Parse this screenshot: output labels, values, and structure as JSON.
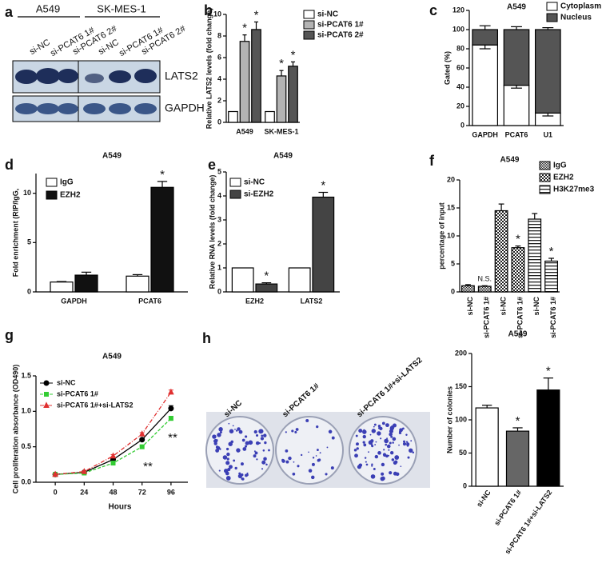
{
  "blot": {
    "panel": "a",
    "groups": [
      "A549",
      "SK-MES-1"
    ],
    "lanes": [
      "si-NC",
      "si-PCAT6 1#",
      "si-PCAT6 2#",
      "si-NC",
      "si-PCAT6 1#",
      "si-PCAT6 2#"
    ],
    "bands": [
      "LATS2",
      "GAPDH"
    ]
  },
  "colony_image": {
    "panel": "h",
    "labels": [
      "si-NC",
      "si-PCAT6 1#",
      "si-PCAT6 1#+si-LATS2"
    ]
  },
  "chart_data": [
    {
      "panel": "b",
      "type": "bar",
      "ylabel": "Relative LATS2 levels (fold change)",
      "categories": [
        "A549",
        "SK-MES-1"
      ],
      "series": [
        {
          "name": "si-NC",
          "color": "#ffffff",
          "values": [
            1,
            1
          ]
        },
        {
          "name": "si-PCAT6 1#",
          "color": "#b3b3b3",
          "values": [
            7.5,
            4.3
          ],
          "errors": [
            0.6,
            0.5
          ]
        },
        {
          "name": "si-PCAT6 2#",
          "color": "#555555",
          "values": [
            8.6,
            5.2
          ],
          "errors": [
            0.7,
            0.4
          ]
        }
      ],
      "ylim": [
        0,
        10
      ],
      "yticks": [
        0,
        2,
        4,
        6,
        8,
        10
      ],
      "annotations": [
        "*",
        "*",
        "*",
        "*"
      ],
      "annotation_color": "#1f3a80"
    },
    {
      "panel": "c",
      "type": "stacked_bar",
      "title": "A549",
      "ylabel": "Gated (%)",
      "categories": [
        "GAPDH",
        "PCAT6",
        "U1"
      ],
      "series": [
        {
          "name": "Cytoplasm",
          "color": "#ffffff",
          "values": [
            84,
            42,
            13
          ],
          "errors": [
            4,
            3,
            3
          ]
        },
        {
          "name": "Nucleus",
          "color": "#555555",
          "values": [
            16,
            58,
            87
          ],
          "errors": [
            4,
            3,
            2
          ]
        }
      ],
      "ylim": [
        0,
        120
      ],
      "yticks": [
        0,
        20,
        40,
        60,
        80,
        100,
        120
      ]
    },
    {
      "panel": "d",
      "type": "bar",
      "title": "A549",
      "ylabel": "Fold enrichment (RIP/IgG,",
      "categories": [
        "GAPDH",
        "PCAT6"
      ],
      "series": [
        {
          "name": "IgG",
          "color": "#ffffff",
          "values": [
            1,
            1.6
          ],
          "errors": [
            0.05,
            0.15
          ]
        },
        {
          "name": "EZH2",
          "color": "#111111",
          "values": [
            1.7,
            10.6
          ],
          "errors": [
            0.3,
            0.6
          ]
        }
      ],
      "ylim": [
        0,
        12
      ],
      "yticks": [
        0,
        5,
        10
      ],
      "annotations": [
        "*"
      ],
      "annotation_color": "#1f3a80"
    },
    {
      "panel": "e",
      "type": "bar",
      "title": "A549",
      "ylabel": "Relative RNA levels (fold change)",
      "categories": [
        "EZH2",
        "LATS2"
      ],
      "series": [
        {
          "name": "si-NC",
          "color": "#ffffff",
          "values": [
            1,
            1
          ]
        },
        {
          "name": "si-EZH2",
          "color": "#444444",
          "values": [
            0.33,
            3.95
          ],
          "errors": [
            0.05,
            0.2
          ]
        }
      ],
      "ylim": [
        0,
        5
      ],
      "yticks": [
        0,
        1,
        2,
        3,
        4,
        5
      ],
      "annotations": [
        "*",
        "*"
      ],
      "annotation_color": "#1f3a80"
    },
    {
      "panel": "f",
      "type": "bar",
      "title": "A549",
      "ylabel": "percentage of input",
      "categories": [
        "si-NC",
        "si-PCAT6 1#",
        "si-NC",
        "si-PCAT6 1#",
        "si-NC",
        "si-PCAT6 1#"
      ],
      "series": [
        {
          "name": "IgG",
          "color": "#222222",
          "pattern": "dense-checker",
          "values": [
            1.1,
            1.0,
            null,
            null,
            null,
            null
          ],
          "errors": [
            0.2,
            0.1,
            null,
            null,
            null,
            null
          ]
        },
        {
          "name": "EZH2",
          "color": "#222222",
          "pattern": "checker",
          "values": [
            null,
            null,
            14.5,
            7.9,
            null,
            null
          ],
          "errors": [
            null,
            null,
            1.2,
            0.3,
            null,
            null
          ]
        },
        {
          "name": "H3K27me3",
          "color": "#222222",
          "pattern": "horizontal-lines",
          "values": [
            null,
            null,
            null,
            null,
            13.0,
            5.5
          ],
          "errors": [
            null,
            null,
            null,
            null,
            1.0,
            0.5
          ]
        }
      ],
      "ylim": [
        0,
        20
      ],
      "yticks": [
        0,
        5,
        10,
        15,
        20
      ],
      "annotations": [
        "N.S.",
        "*",
        "*"
      ]
    },
    {
      "panel": "g",
      "type": "line",
      "title": "A549",
      "xlabel": "Hours",
      "ylabel": "Cell proliferation absorbance (OD490)",
      "x": [
        0,
        24,
        48,
        72,
        96
      ],
      "series": [
        {
          "name": "si-NC",
          "color": "#000000",
          "marker": "circle",
          "dash": "solid",
          "values": [
            0.11,
            0.14,
            0.32,
            0.6,
            1.04
          ],
          "errors": [
            0.01,
            0.01,
            0.02,
            0.02,
            0.04
          ]
        },
        {
          "name": "si-PCAT6 1#",
          "color": "#33cc33",
          "marker": "square",
          "dash": "dashed",
          "values": [
            0.11,
            0.13,
            0.27,
            0.5,
            0.9
          ],
          "errors": [
            0.01,
            0.01,
            0.02,
            0.02,
            0.03
          ]
        },
        {
          "name": "si-PCAT6 1#+si-LATS2",
          "color": "#e03030",
          "marker": "triangle",
          "dash": "dashdot",
          "values": [
            0.11,
            0.15,
            0.37,
            0.68,
            1.27
          ],
          "errors": [
            0.01,
            0.01,
            0.02,
            0.02,
            0.03
          ]
        }
      ],
      "xlim": [
        -16,
        110
      ],
      "xticks": [
        0,
        24,
        48,
        72,
        96
      ],
      "ylim": [
        0,
        1.5
      ],
      "yticks": [
        {
          "value": 0,
          "label": "0.0"
        },
        0.5,
        {
          "value": 1,
          "label": "1.0"
        },
        1.5
      ],
      "annotations": [
        "**",
        "**"
      ]
    },
    {
      "type": "bar",
      "title": "A549",
      "ylabel": "Number of colonies",
      "categories": [
        "si-NC",
        "si-PCAT6 1#",
        "si-PCAT6 1#+si-LATS2"
      ],
      "values": [
        118,
        83,
        145
      ],
      "errors": [
        4,
        5,
        18
      ],
      "colors": [
        "#ffffff",
        "#666666",
        "#000000"
      ],
      "ylim": [
        0,
        200
      ],
      "yticks": [
        0,
        50,
        100,
        150,
        200
      ],
      "annotations": [
        "*",
        "*"
      ]
    }
  ]
}
